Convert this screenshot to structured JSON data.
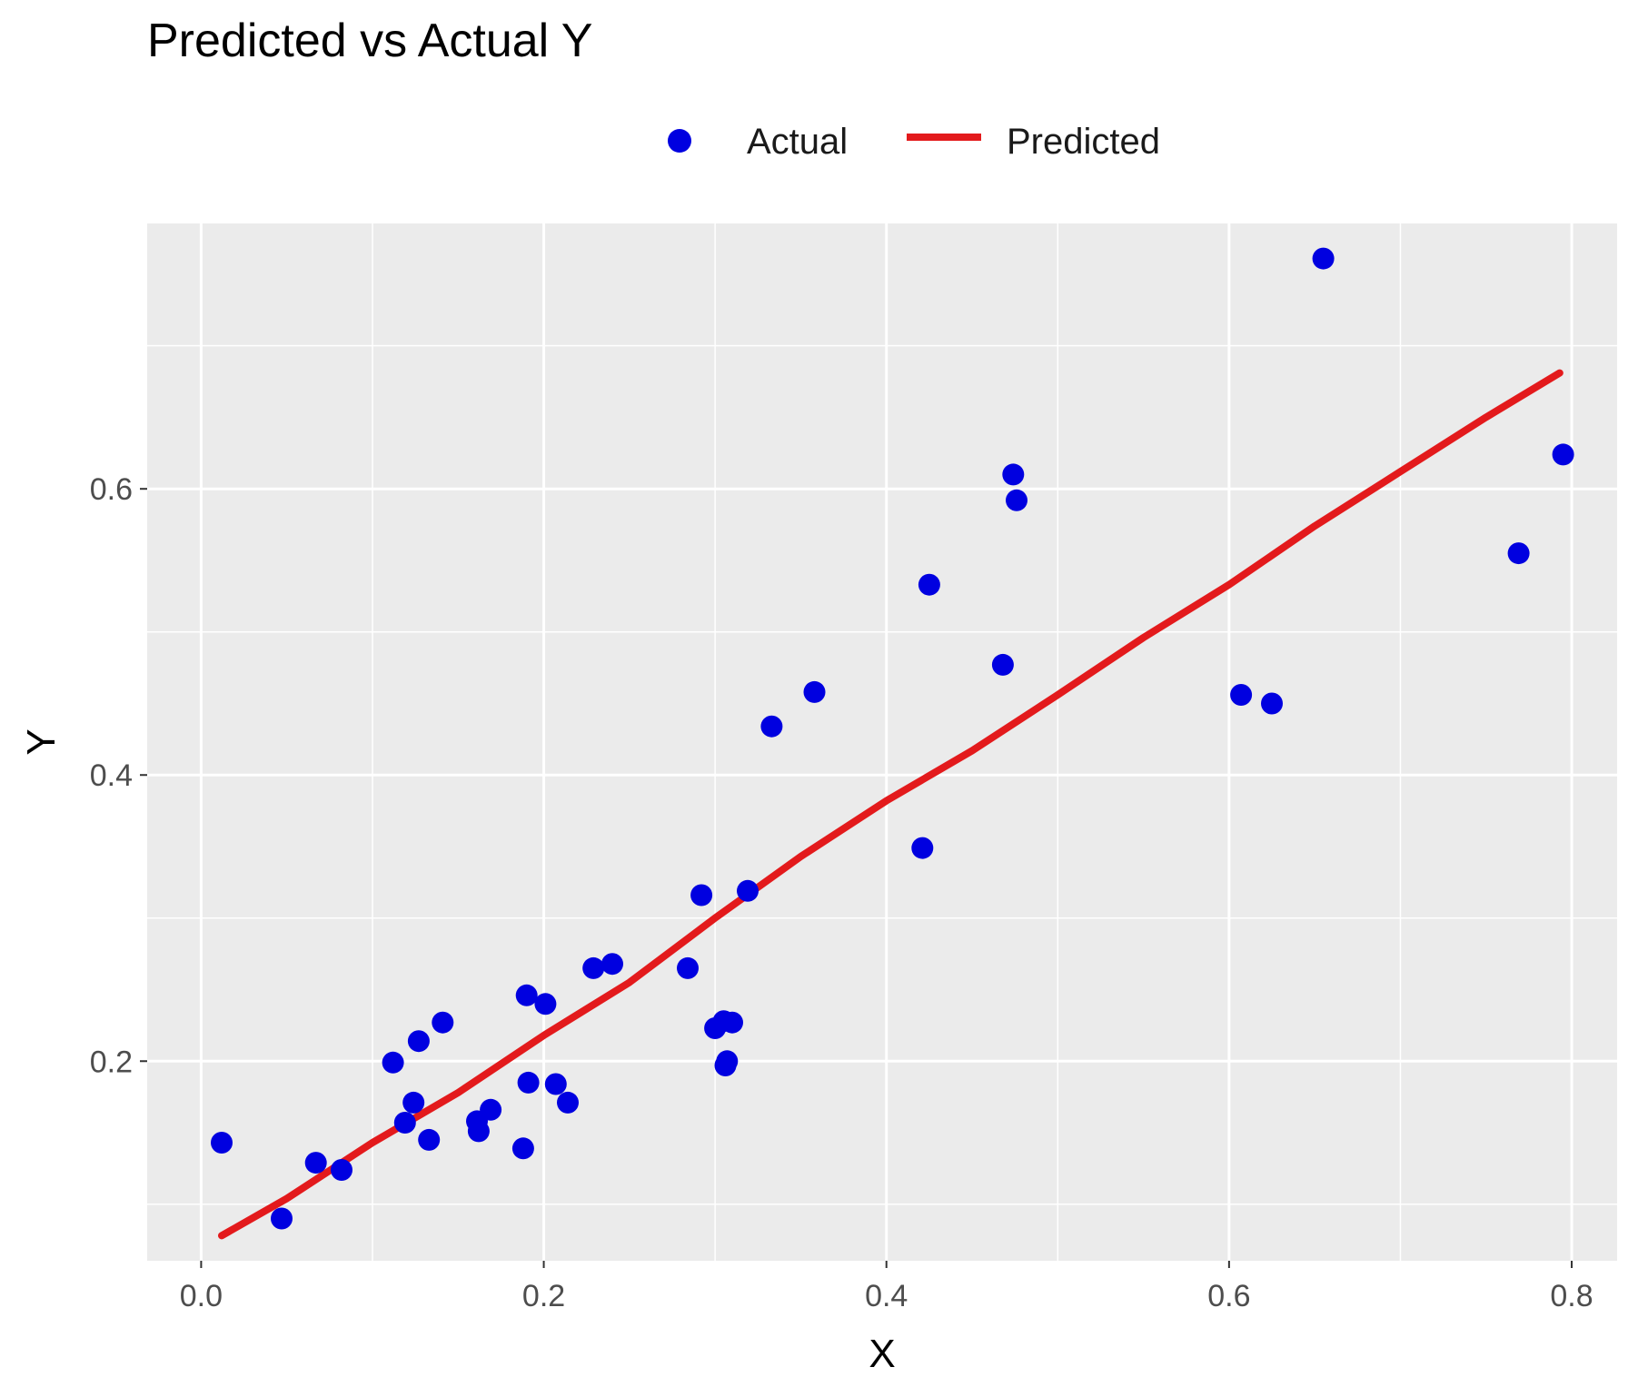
{
  "chart_data": {
    "type": "scatter",
    "title": "Predicted vs Actual Y",
    "xlabel": "X",
    "ylabel": "Y",
    "xlim": [
      -0.0315,
      0.8265
    ],
    "ylim": [
      0.0605,
      0.7855
    ],
    "x_ticks": [
      0.0,
      0.2,
      0.4,
      0.6,
      0.8
    ],
    "x_tick_labels": [
      "0.0",
      "0.2",
      "0.4",
      "0.6",
      "0.8"
    ],
    "y_ticks": [
      0.2,
      0.4,
      0.6
    ],
    "y_tick_labels": [
      "0.2",
      "0.4",
      "0.6"
    ],
    "x_minor_ticks": [
      0.1,
      0.3,
      0.5,
      0.7
    ],
    "y_minor_ticks": [
      0.1,
      0.3,
      0.5,
      0.7
    ],
    "grid": true,
    "legend": {
      "position": "top",
      "entries": [
        {
          "label": "Actual",
          "symbol": "point",
          "color": "#0000e0"
        },
        {
          "label": "Predicted",
          "symbol": "line",
          "color": "#e31a1c"
        }
      ]
    },
    "colors": {
      "actual": "#0000e0",
      "predicted": "#e31a1c",
      "panel_background": "#ebebeb",
      "grid": "#ffffff"
    },
    "series": [
      {
        "name": "Actual",
        "mark": "point",
        "points": [
          [
            0.012,
            0.143
          ],
          [
            0.047,
            0.09
          ],
          [
            0.067,
            0.129
          ],
          [
            0.082,
            0.124
          ],
          [
            0.112,
            0.199
          ],
          [
            0.119,
            0.157
          ],
          [
            0.124,
            0.171
          ],
          [
            0.127,
            0.214
          ],
          [
            0.133,
            0.145
          ],
          [
            0.141,
            0.227
          ],
          [
            0.161,
            0.158
          ],
          [
            0.162,
            0.151
          ],
          [
            0.169,
            0.166
          ],
          [
            0.188,
            0.139
          ],
          [
            0.19,
            0.246
          ],
          [
            0.191,
            0.185
          ],
          [
            0.201,
            0.24
          ],
          [
            0.207,
            0.184
          ],
          [
            0.214,
            0.171
          ],
          [
            0.229,
            0.265
          ],
          [
            0.24,
            0.268
          ],
          [
            0.284,
            0.265
          ],
          [
            0.292,
            0.316
          ],
          [
            0.3,
            0.223
          ],
          [
            0.305,
            0.228
          ],
          [
            0.306,
            0.197
          ],
          [
            0.307,
            0.2
          ],
          [
            0.31,
            0.227
          ],
          [
            0.319,
            0.319
          ],
          [
            0.333,
            0.434
          ],
          [
            0.358,
            0.458
          ],
          [
            0.421,
            0.349
          ],
          [
            0.425,
            0.533
          ],
          [
            0.468,
            0.477
          ],
          [
            0.474,
            0.61
          ],
          [
            0.476,
            0.592
          ],
          [
            0.607,
            0.456
          ],
          [
            0.625,
            0.45
          ],
          [
            0.655,
            0.761
          ],
          [
            0.769,
            0.555
          ],
          [
            0.795,
            0.624
          ]
        ]
      },
      {
        "name": "Predicted",
        "mark": "line",
        "points": [
          [
            0.012,
            0.078
          ],
          [
            0.05,
            0.104
          ],
          [
            0.1,
            0.143
          ],
          [
            0.15,
            0.178
          ],
          [
            0.2,
            0.218
          ],
          [
            0.25,
            0.255
          ],
          [
            0.3,
            0.3
          ],
          [
            0.35,
            0.343
          ],
          [
            0.4,
            0.382
          ],
          [
            0.45,
            0.417
          ],
          [
            0.5,
            0.456
          ],
          [
            0.55,
            0.496
          ],
          [
            0.6,
            0.533
          ],
          [
            0.65,
            0.574
          ],
          [
            0.7,
            0.612
          ],
          [
            0.75,
            0.65
          ],
          [
            0.793,
            0.681
          ]
        ]
      }
    ]
  }
}
